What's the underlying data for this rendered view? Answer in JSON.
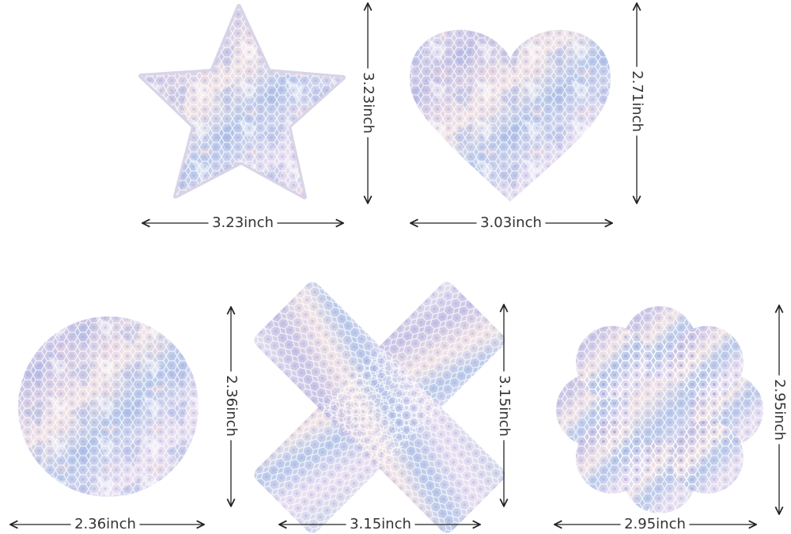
{
  "shapes": [
    {
      "name": "star",
      "width": "3.23inch",
      "height": "3.23inch"
    },
    {
      "name": "heart",
      "width": "3.03inch",
      "height": "2.71inch"
    },
    {
      "name": "circle",
      "width": "2.36inch",
      "height": "2.36inch"
    },
    {
      "name": "cross",
      "width": "3.15inch",
      "height": "3.15inch"
    },
    {
      "name": "flower",
      "width": "2.95inch",
      "height": "2.95inch"
    }
  ]
}
